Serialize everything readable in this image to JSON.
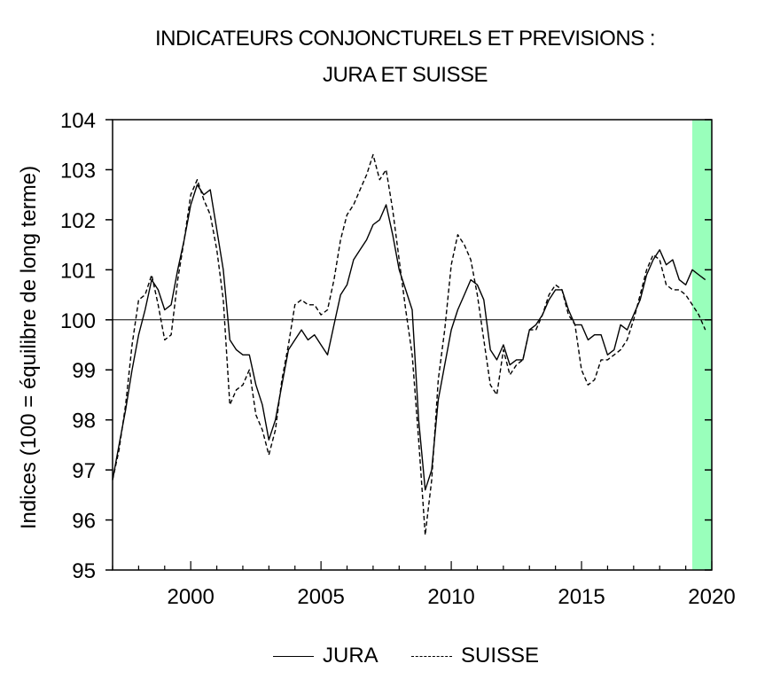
{
  "title_line1": "INDICATEURS CONJONCTURELS ET PREVISIONS :",
  "title_line2": "JURA ET SUISSE",
  "chart_data": {
    "type": "line",
    "title": "INDICATEURS CONJONCTURELS ET PREVISIONS : JURA ET SUISSE",
    "xlabel": "",
    "ylabel": "Indices (100 = équilibre de long terme)",
    "xlim": [
      1997.0,
      2020.0
    ],
    "ylim": [
      95,
      104
    ],
    "x_ticks": [
      "2000",
      "2005",
      "2010",
      "2015",
      "2020"
    ],
    "y_ticks": [
      "95",
      "96",
      "97",
      "98",
      "99",
      "100",
      "101",
      "102",
      "103",
      "104"
    ],
    "reference_line": 100,
    "forecast_region": {
      "from": 2019.25,
      "to": 2020.0,
      "color": "#99ffbb"
    },
    "legend_position": "bottom",
    "x": [
      1997.0,
      1997.25,
      1997.5,
      1997.75,
      1998.0,
      1998.25,
      1998.5,
      1998.75,
      1999.0,
      1999.25,
      1999.5,
      1999.75,
      2000.0,
      2000.25,
      2000.5,
      2000.75,
      2001.0,
      2001.25,
      2001.5,
      2001.75,
      2002.0,
      2002.25,
      2002.5,
      2002.75,
      2003.0,
      2003.25,
      2003.5,
      2003.75,
      2004.0,
      2004.25,
      2004.5,
      2004.75,
      2005.0,
      2005.25,
      2005.5,
      2005.75,
      2006.0,
      2006.25,
      2006.5,
      2006.75,
      2007.0,
      2007.25,
      2007.5,
      2007.75,
      2008.0,
      2008.25,
      2008.5,
      2008.75,
      2009.0,
      2009.25,
      2009.5,
      2009.75,
      2010.0,
      2010.25,
      2010.5,
      2010.75,
      2011.0,
      2011.25,
      2011.5,
      2011.75,
      2012.0,
      2012.25,
      2012.5,
      2012.75,
      2013.0,
      2013.25,
      2013.5,
      2013.75,
      2014.0,
      2014.25,
      2014.5,
      2014.75,
      2015.0,
      2015.25,
      2015.5,
      2015.75,
      2016.0,
      2016.25,
      2016.5,
      2016.75,
      2017.0,
      2017.25,
      2017.5,
      2017.75,
      2018.0,
      2018.25,
      2018.5,
      2018.75,
      2019.0,
      2019.25,
      2019.5,
      2019.75
    ],
    "series": [
      {
        "name": "JURA",
        "style": "solid",
        "color": "#000000",
        "values": [
          96.8,
          97.5,
          98.2,
          99.0,
          99.7,
          100.2,
          100.8,
          100.6,
          100.2,
          100.3,
          101.0,
          101.6,
          102.3,
          102.7,
          102.5,
          102.6,
          101.8,
          101.0,
          99.6,
          99.4,
          99.3,
          99.3,
          98.7,
          98.3,
          97.6,
          98.0,
          98.7,
          99.4,
          99.6,
          99.8,
          99.6,
          99.7,
          99.5,
          99.3,
          99.9,
          100.5,
          100.7,
          101.2,
          101.4,
          101.6,
          101.9,
          102.0,
          102.3,
          101.7,
          101.0,
          100.6,
          100.2,
          98.0,
          96.6,
          97.0,
          98.4,
          99.1,
          99.8,
          100.2,
          100.5,
          100.8,
          100.7,
          100.4,
          99.4,
          99.2,
          99.5,
          99.1,
          99.2,
          99.2,
          99.8,
          99.9,
          100.1,
          100.4,
          100.6,
          100.6,
          100.2,
          99.9,
          99.9,
          99.6,
          99.7,
          99.7,
          99.3,
          99.4,
          99.9,
          99.8,
          100.1,
          100.4,
          100.9,
          101.2,
          101.4,
          101.1,
          101.2,
          100.8,
          100.7,
          101.0,
          100.9,
          100.8
        ]
      },
      {
        "name": "SUISSE",
        "style": "dashed",
        "color": "#000000",
        "values": [
          96.8,
          97.4,
          98.3,
          99.5,
          100.4,
          100.5,
          100.9,
          100.3,
          99.6,
          99.7,
          100.8,
          101.6,
          102.5,
          102.8,
          102.4,
          102.1,
          101.4,
          100.4,
          98.3,
          98.6,
          98.7,
          99.0,
          98.1,
          97.8,
          97.3,
          97.8,
          98.8,
          99.5,
          100.3,
          100.4,
          100.3,
          100.3,
          100.1,
          100.2,
          100.8,
          101.6,
          102.1,
          102.3,
          102.6,
          102.9,
          103.3,
          102.8,
          103.0,
          102.2,
          101.2,
          100.2,
          99.3,
          97.6,
          95.7,
          96.8,
          98.8,
          99.8,
          101.1,
          101.7,
          101.5,
          101.2,
          100.5,
          99.6,
          98.7,
          98.5,
          99.4,
          98.9,
          99.1,
          99.2,
          99.8,
          99.8,
          100.1,
          100.5,
          100.7,
          100.6,
          100.1,
          99.9,
          99.0,
          98.7,
          98.8,
          99.2,
          99.2,
          99.3,
          99.4,
          99.6,
          100.0,
          100.5,
          101.0,
          101.3,
          101.2,
          100.7,
          100.6,
          100.6,
          100.5,
          100.3,
          100.1,
          99.8
        ]
      }
    ]
  }
}
